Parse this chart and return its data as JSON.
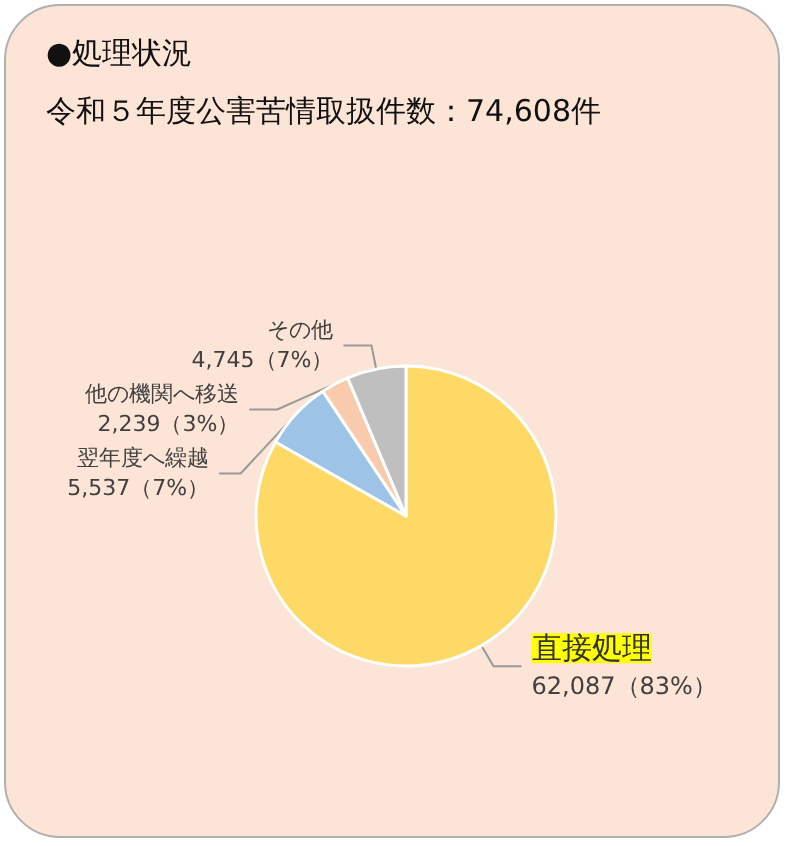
{
  "chart_data": {
    "type": "pie",
    "title": "●処理状況",
    "subtitle": "令和５年度公害苦情取扱件数：74,608件",
    "categories": [
      "直接処理",
      "翌年度へ繰越",
      "他の機関へ移送",
      "その他"
    ],
    "values": [
      62087,
      5537,
      2239,
      4745
    ],
    "colors": [
      "#ffd966",
      "#9dc3e6",
      "#f8cbad",
      "#bfbfbf"
    ],
    "value_labels": [
      "62,087（83%）",
      "5,537（7%）",
      "2,239（3%）",
      "4,745（7%）"
    ]
  }
}
